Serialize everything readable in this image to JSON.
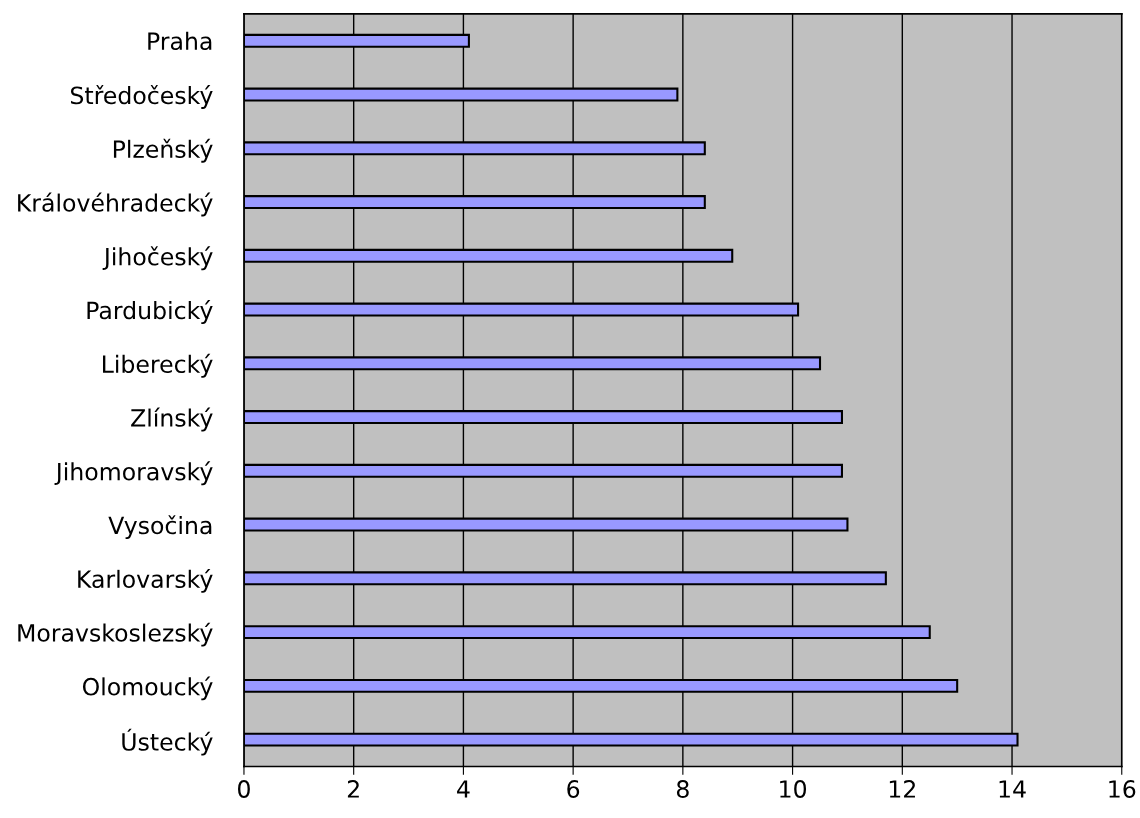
{
  "chart_data": {
    "type": "bar",
    "orientation": "horizontal",
    "categories": [
      "Praha",
      "Středočeský",
      "Plzeňský",
      "Královéhradecký",
      "Jihočeský",
      "Pardubický",
      "Liberecký",
      "Zlínský",
      "Jihomoravský",
      "Vysočina",
      "Karlovarský",
      "Moravskoslezský",
      "Olomoucký",
      "Ústecký"
    ],
    "values": [
      4.1,
      7.9,
      8.4,
      8.4,
      8.9,
      10.1,
      10.5,
      10.9,
      10.9,
      11.0,
      11.7,
      12.5,
      13.0,
      14.1
    ],
    "color": "#9999ff",
    "xlim": [
      0,
      16
    ],
    "xticks": [
      0,
      2,
      4,
      6,
      8,
      10,
      12,
      14,
      16
    ],
    "grid": "x",
    "legend": false
  }
}
